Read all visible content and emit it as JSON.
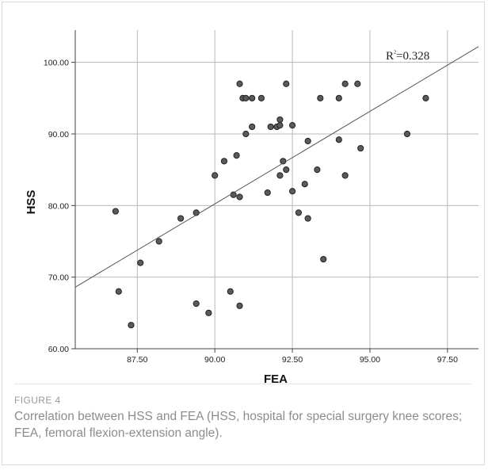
{
  "chart_data": {
    "type": "scatter",
    "xlabel": "FEA",
    "ylabel": "HSS",
    "xlim": [
      85.5,
      98.5
    ],
    "ylim": [
      60,
      104.5
    ],
    "x_ticks": [
      "87.50",
      "90.00",
      "92.50",
      "95.00",
      "97.50"
    ],
    "x_tick_values": [
      87.5,
      90,
      92.5,
      95,
      97.5
    ],
    "y_ticks": [
      "60.00",
      "70.00",
      "80.00",
      "90.00",
      "100.00"
    ],
    "y_tick_values": [
      60,
      70,
      80,
      90,
      100
    ],
    "grid": true,
    "annotation": "R²=0.328",
    "fit_line": {
      "x": [
        85.5,
        98.5
      ],
      "y": [
        68.6,
        102.2
      ]
    },
    "points": [
      {
        "x": 86.8,
        "y": 79.2
      },
      {
        "x": 86.9,
        "y": 68.0
      },
      {
        "x": 87.3,
        "y": 63.3
      },
      {
        "x": 87.6,
        "y": 72.0
      },
      {
        "x": 88.2,
        "y": 75.0
      },
      {
        "x": 88.9,
        "y": 78.2
      },
      {
        "x": 89.4,
        "y": 79.0
      },
      {
        "x": 89.4,
        "y": 66.3
      },
      {
        "x": 89.8,
        "y": 65.0
      },
      {
        "x": 90.0,
        "y": 84.2
      },
      {
        "x": 90.3,
        "y": 86.2
      },
      {
        "x": 90.5,
        "y": 68.0
      },
      {
        "x": 90.6,
        "y": 81.5
      },
      {
        "x": 90.7,
        "y": 87.0
      },
      {
        "x": 90.8,
        "y": 97.0
      },
      {
        "x": 90.8,
        "y": 81.2
      },
      {
        "x": 90.8,
        "y": 66.0
      },
      {
        "x": 90.9,
        "y": 95.0
      },
      {
        "x": 91.0,
        "y": 95.0
      },
      {
        "x": 91.0,
        "y": 90.0
      },
      {
        "x": 91.2,
        "y": 95.0
      },
      {
        "x": 91.2,
        "y": 91.0
      },
      {
        "x": 91.5,
        "y": 95.0
      },
      {
        "x": 91.7,
        "y": 81.8
      },
      {
        "x": 91.8,
        "y": 91.0
      },
      {
        "x": 92.0,
        "y": 91.0
      },
      {
        "x": 92.1,
        "y": 91.2
      },
      {
        "x": 92.1,
        "y": 92.0
      },
      {
        "x": 92.1,
        "y": 84.2
      },
      {
        "x": 92.2,
        "y": 86.2
      },
      {
        "x": 92.3,
        "y": 97.0
      },
      {
        "x": 92.3,
        "y": 85.0
      },
      {
        "x": 92.5,
        "y": 91.2
      },
      {
        "x": 92.5,
        "y": 82.0
      },
      {
        "x": 92.7,
        "y": 79.0
      },
      {
        "x": 92.9,
        "y": 83.0
      },
      {
        "x": 93.0,
        "y": 89.0
      },
      {
        "x": 93.0,
        "y": 78.2
      },
      {
        "x": 93.3,
        "y": 85.0
      },
      {
        "x": 93.4,
        "y": 95.0
      },
      {
        "x": 93.5,
        "y": 72.5
      },
      {
        "x": 94.0,
        "y": 95.0
      },
      {
        "x": 94.0,
        "y": 89.2
      },
      {
        "x": 94.2,
        "y": 97.0
      },
      {
        "x": 94.2,
        "y": 84.2
      },
      {
        "x": 94.6,
        "y": 97.0
      },
      {
        "x": 94.7,
        "y": 88.0
      },
      {
        "x": 96.2,
        "y": 90.0
      },
      {
        "x": 96.8,
        "y": 95.0
      }
    ]
  },
  "caption": {
    "label": "FIGURE 4",
    "text": "Correlation between HSS and FEA (HSS, hospital for special surgery knee scores; FEA, femoral flexion-extension angle)."
  },
  "colors": {
    "point_fill": "#5a5a5a",
    "point_stroke": "#222222",
    "grid": "#b9b9b9",
    "axis": "#444444",
    "caption": "#8c8c8c"
  }
}
